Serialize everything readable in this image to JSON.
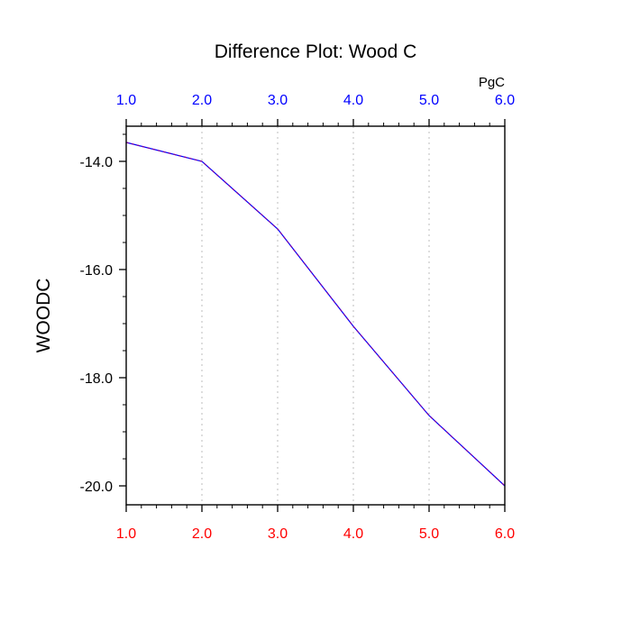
{
  "chart_data": {
    "type": "line",
    "title": "Difference Plot: Wood C",
    "ylabel": "WOODC",
    "units_label": "PgC",
    "x": [
      1.0,
      2.0,
      3.0,
      4.0,
      5.0,
      6.0
    ],
    "series": [
      {
        "values": [
          -13.65,
          -14.0,
          -15.25,
          -17.05,
          -18.7,
          -20.0
        ],
        "color": "#8000a0",
        "dash_color": "#0000ff",
        "style": "dashed"
      }
    ],
    "xlim": [
      1.0,
      6.0
    ],
    "ylim": [
      -20.35,
      -13.35
    ],
    "x_ticks": [
      "1.0",
      "2.0",
      "3.0",
      "4.0",
      "5.0",
      "6.0"
    ],
    "y_ticks": [
      "-14.0",
      "-16.0",
      "-18.0",
      "-20.0"
    ],
    "y_tick_values": [
      -14.0,
      -16.0,
      -18.0,
      -20.0
    ],
    "bottom_tick_color": "#ff0000",
    "top_tick_color": "#0000ff",
    "grid": "vertical-dotted"
  }
}
